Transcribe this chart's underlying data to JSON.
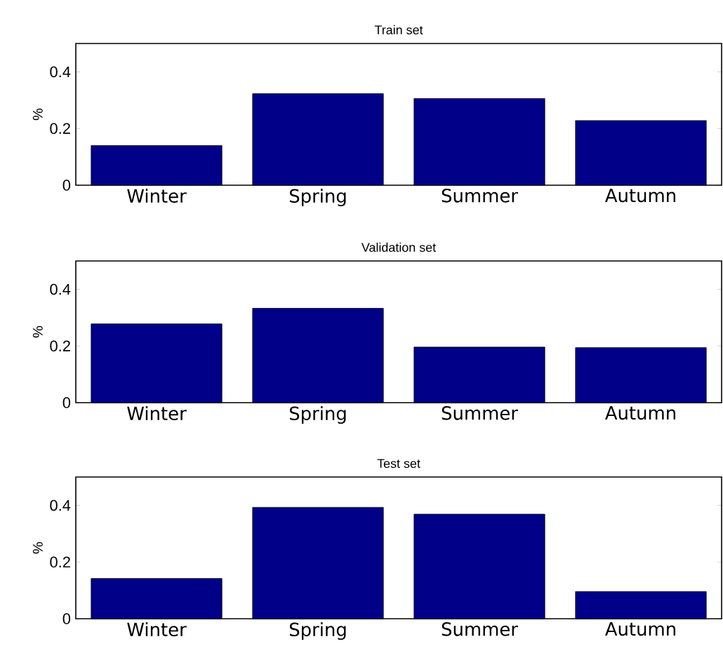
{
  "chart_data": [
    {
      "type": "bar",
      "title": "Train set",
      "ylabel": "%",
      "categories": [
        "Winter",
        "Spring",
        "Summer",
        "Autumn"
      ],
      "values": [
        0.14,
        0.323,
        0.306,
        0.228
      ],
      "color": "#000088",
      "ylim": [
        0,
        0.5
      ],
      "yticks": [
        0,
        0.2,
        0.4
      ]
    },
    {
      "type": "bar",
      "title": "Validation set",
      "ylabel": "%",
      "categories": [
        "Winter",
        "Spring",
        "Summer",
        "Autumn"
      ],
      "values": [
        0.278,
        0.333,
        0.196,
        0.194
      ],
      "color": "#000088",
      "ylim": [
        0,
        0.5
      ],
      "yticks": [
        0,
        0.2,
        0.4
      ]
    },
    {
      "type": "bar",
      "title": "Test set",
      "ylabel": "%",
      "categories": [
        "Winter",
        "Spring",
        "Summer",
        "Autumn"
      ],
      "values": [
        0.142,
        0.393,
        0.369,
        0.096
      ],
      "color": "#000088",
      "ylim": [
        0,
        0.5
      ],
      "yticks": [
        0,
        0.2,
        0.4
      ]
    }
  ]
}
